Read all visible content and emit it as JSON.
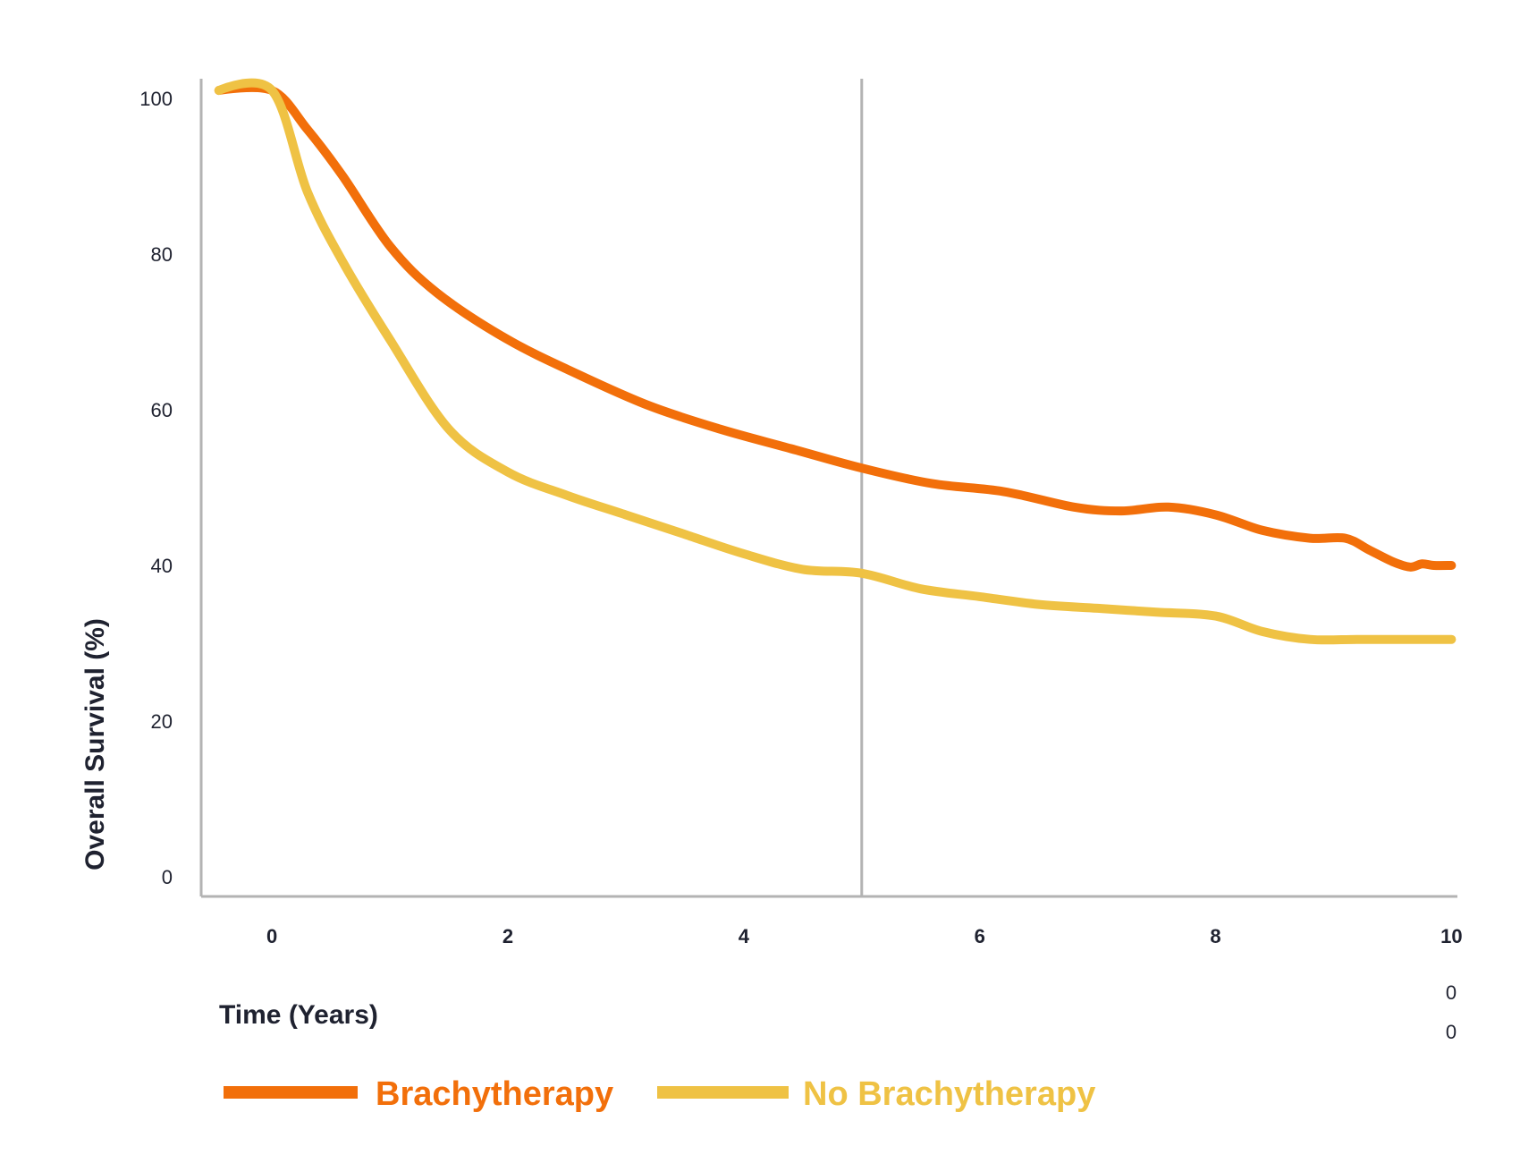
{
  "chart_data": {
    "type": "line",
    "ylabel": "Overall Survival (%)",
    "xlabel": "Time (Years)",
    "xlim": [
      -0.6,
      10.05
    ],
    "ylim": [
      -2.5,
      102.5
    ],
    "x_ticks": [
      {
        "value": 0,
        "label": "0"
      },
      {
        "value": 2,
        "label": "2"
      },
      {
        "value": 4,
        "label": "4"
      },
      {
        "value": 6,
        "label": "6"
      },
      {
        "value": 8,
        "label": "8"
      },
      {
        "value": 10,
        "label": "10"
      }
    ],
    "y_ticks": [
      {
        "value": 0,
        "label": "0"
      },
      {
        "value": 20,
        "label": "20"
      },
      {
        "value": 40,
        "label": "40"
      },
      {
        "value": 60,
        "label": "60"
      },
      {
        "value": 80,
        "label": "80"
      },
      {
        "value": 100,
        "label": "100"
      }
    ],
    "extra_labels": [
      "0",
      "0"
    ],
    "reference_line_x": 5,
    "grid": false,
    "legend_position": "bottom-left",
    "series": [
      {
        "name": "Brachytherapy",
        "color": "#F26F0A",
        "x": [
          -0.45,
          0.0,
          0.3,
          0.6,
          1.0,
          1.4,
          2.0,
          2.6,
          3.2,
          3.8,
          4.4,
          5.0,
          5.6,
          6.2,
          6.8,
          7.2,
          7.6,
          8.0,
          8.4,
          8.8,
          9.1,
          9.3,
          9.5,
          9.65,
          9.75,
          9.85,
          10.0
        ],
        "y": [
          101,
          101,
          96,
          90,
          81,
          75,
          69,
          64.5,
          60.5,
          57.5,
          55,
          52.5,
          50.5,
          49.5,
          47.5,
          47,
          47.5,
          46.5,
          44.5,
          43.5,
          43.5,
          42,
          40.5,
          39.8,
          40.2,
          40,
          40
        ]
      },
      {
        "name": "No Brachytherapy",
        "color": "#EFC244",
        "x": [
          -0.45,
          0.0,
          0.3,
          0.6,
          1.0,
          1.5,
          2.0,
          2.5,
          3.0,
          3.5,
          4.0,
          4.5,
          5.0,
          5.5,
          6.0,
          6.5,
          7.0,
          7.5,
          8.0,
          8.4,
          8.8,
          9.2,
          9.6,
          10.0
        ],
        "y": [
          101,
          101,
          88,
          79,
          69,
          57.5,
          52,
          49,
          46.5,
          44,
          41.5,
          39.5,
          39,
          37,
          36,
          35,
          34.5,
          34,
          33.5,
          31.5,
          30.5,
          30.5,
          30.5,
          30.5
        ]
      }
    ]
  }
}
